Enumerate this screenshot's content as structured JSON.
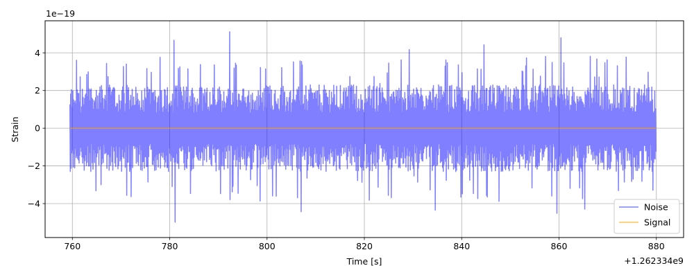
{
  "chart_data": {
    "type": "line",
    "title": "",
    "xlabel": "Time [s]",
    "ylabel": "Strain",
    "x_offset_label": "+1.262334e9",
    "y_scale_label": "1e−19",
    "xlim": [
      754.4,
      885.6
    ],
    "ylim": [
      -5.8,
      5.7
    ],
    "x_ticks": [
      760,
      780,
      800,
      820,
      840,
      860,
      880
    ],
    "x_tick_labels": [
      "760",
      "780",
      "800",
      "820",
      "840",
      "860",
      "880"
    ],
    "y_ticks": [
      -4,
      -2,
      0,
      2,
      4
    ],
    "y_tick_labels": [
      "−4",
      "−2",
      "0",
      "2",
      "4"
    ],
    "grid": true,
    "legend_position": "lower-right",
    "series": [
      {
        "name": "Noise",
        "color": "#0000ff",
        "opacity": 0.5,
        "x_range": [
          759.5,
          879.9
        ],
        "envelope": {
          "typical_upper": 2.3,
          "typical_lower": -2.3,
          "peak_upper": 5.2,
          "peak_lower": -5.3
        }
      },
      {
        "name": "Signal",
        "color": "#ffa500",
        "x": [
          759.5,
          879.9
        ],
        "y": [
          0,
          0
        ]
      }
    ]
  }
}
